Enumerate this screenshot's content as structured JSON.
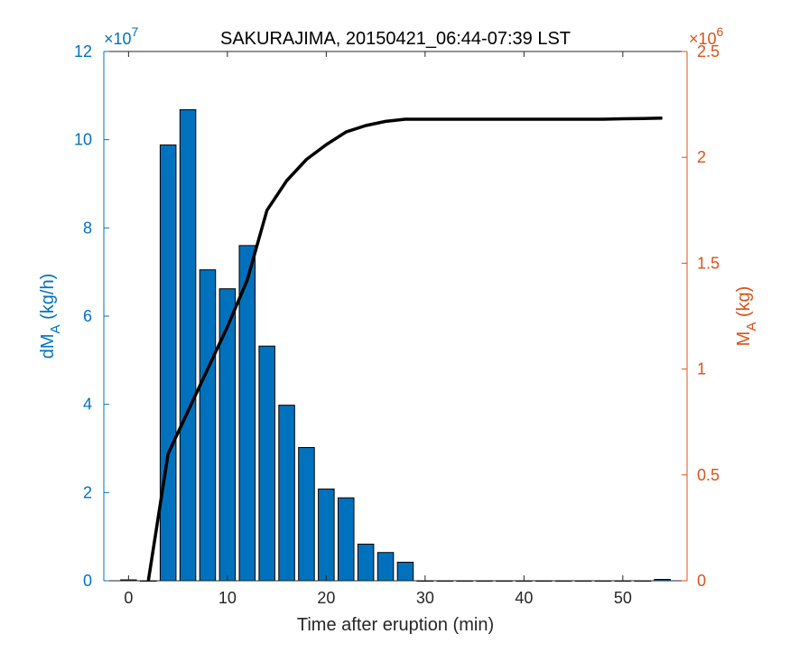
{
  "chart_data": {
    "type": "bar",
    "title": "SAKURAJIMA, 20150421_06:44-07:39 LST",
    "xlabel": "Time after eruption (min)",
    "xlim": [
      -2.5,
      56.5
    ],
    "xticks": [
      0,
      10,
      20,
      30,
      40,
      50
    ],
    "left_axis": {
      "label_main": "dM",
      "label_sub": "A",
      "label_unit": "(kg/h)",
      "exponent_text": "×10",
      "exponent_power": "7",
      "ylim": [
        0,
        12
      ],
      "ticks": [
        0,
        2,
        4,
        6,
        8,
        10,
        12
      ],
      "color": "#0072BD"
    },
    "right_axis": {
      "label_main": "M",
      "label_sub": "A",
      "label_unit": "(kg)",
      "exponent_text": "×10",
      "exponent_power": "6",
      "ylim": [
        0,
        2.5
      ],
      "ticks": [
        "0",
        "0.5",
        "1",
        "1.5",
        "2",
        "2.5"
      ],
      "tick_values": [
        0,
        0.5,
        1,
        1.5,
        2,
        2.5
      ],
      "color": "#D95319"
    },
    "series": [
      {
        "kind": "bar",
        "axis": "left",
        "x": [
          0,
          2,
          4,
          6,
          8,
          10,
          12,
          14,
          16,
          18,
          20,
          22,
          24,
          26,
          28,
          30,
          32,
          34,
          36,
          38,
          40,
          42,
          44,
          46,
          48,
          50,
          52,
          54
        ],
        "values": [
          0.02,
          0,
          9.88,
          10.68,
          7.05,
          6.62,
          7.6,
          5.32,
          3.98,
          3.02,
          2.08,
          1.88,
          0.83,
          0.64,
          0.42,
          0,
          0,
          0,
          0,
          0,
          0,
          0,
          0,
          0,
          0,
          0,
          0,
          0.03
        ],
        "bar_width": 1.6,
        "fill": "#0072BD",
        "edge": "#000000"
      },
      {
        "kind": "line",
        "axis": "right",
        "x": [
          2,
          4,
          6,
          8,
          10,
          12,
          14,
          16,
          18,
          20,
          22,
          24,
          26,
          28,
          30,
          32,
          34,
          36,
          38,
          40,
          42,
          44,
          46,
          48,
          50,
          52,
          54
        ],
        "values": [
          0.0,
          0.6,
          0.8,
          1.0,
          1.2,
          1.42,
          1.75,
          1.89,
          1.99,
          2.06,
          2.12,
          2.15,
          2.17,
          2.18,
          2.18,
          2.18,
          2.18,
          2.18,
          2.18,
          2.18,
          2.18,
          2.18,
          2.18,
          2.18,
          2.182,
          2.183,
          2.185
        ],
        "color": "#000000"
      }
    ]
  }
}
